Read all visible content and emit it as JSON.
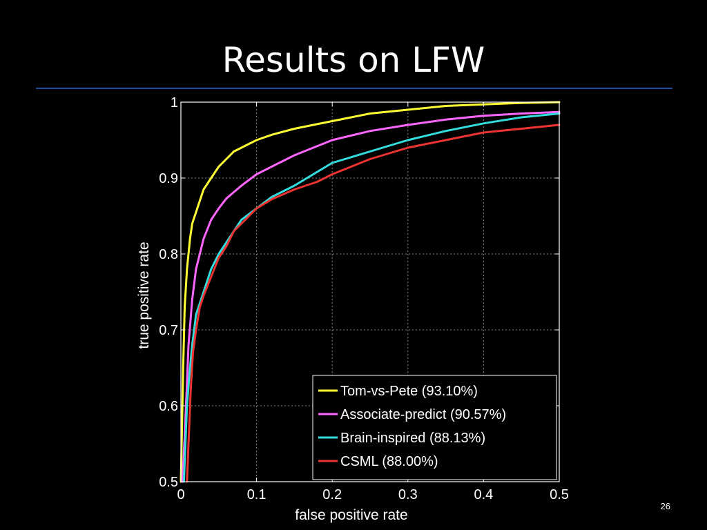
{
  "slide": {
    "title": "Results on LFW",
    "number": "26",
    "accent_rule_color": "#1f4e9c"
  },
  "chart_data": {
    "type": "line",
    "title": "",
    "xlabel": "false positive rate",
    "ylabel": "true positive rate",
    "xlim": [
      0,
      0.5
    ],
    "ylim": [
      0.5,
      1
    ],
    "xticks": [
      0,
      0.1,
      0.2,
      0.3,
      0.4,
      0.5
    ],
    "yticks": [
      0.5,
      0.6,
      0.7,
      0.8,
      0.9,
      1
    ],
    "xtick_labels": [
      "0",
      "0.1",
      "0.2",
      "0.3",
      "0.4",
      "0.5"
    ],
    "ytick_labels": [
      "0.5",
      "0.6",
      "0.7",
      "0.8",
      "0.9",
      "1"
    ],
    "grid": true,
    "legend_position": "bottom-right",
    "series": [
      {
        "name": "Tom-vs-Pete (93.10%)",
        "color": "#ffff33",
        "x": [
          0,
          0.003,
          0.005,
          0.008,
          0.012,
          0.015,
          0.02,
          0.025,
          0.03,
          0.04,
          0.05,
          0.06,
          0.07,
          0.08,
          0.1,
          0.12,
          0.15,
          0.2,
          0.25,
          0.3,
          0.35,
          0.4,
          0.45,
          0.5
        ],
        "y": [
          0.5,
          0.65,
          0.73,
          0.78,
          0.82,
          0.84,
          0.855,
          0.87,
          0.885,
          0.9,
          0.915,
          0.925,
          0.935,
          0.94,
          0.95,
          0.957,
          0.965,
          0.975,
          0.985,
          0.99,
          0.995,
          0.997,
          0.999,
          1.0
        ]
      },
      {
        "name": "Associate-predict (90.57%)",
        "color": "#ff66ff",
        "x": [
          0.002,
          0.005,
          0.008,
          0.01,
          0.015,
          0.02,
          0.025,
          0.03,
          0.04,
          0.05,
          0.06,
          0.08,
          0.1,
          0.12,
          0.15,
          0.2,
          0.25,
          0.3,
          0.35,
          0.4,
          0.45,
          0.5
        ],
        "y": [
          0.5,
          0.56,
          0.63,
          0.68,
          0.74,
          0.78,
          0.8,
          0.82,
          0.845,
          0.86,
          0.873,
          0.89,
          0.905,
          0.915,
          0.93,
          0.95,
          0.962,
          0.97,
          0.977,
          0.982,
          0.985,
          0.987
        ]
      },
      {
        "name": "Brain-inspired (88.13%)",
        "color": "#33dddd",
        "x": [
          0.004,
          0.008,
          0.012,
          0.015,
          0.02,
          0.03,
          0.04,
          0.05,
          0.06,
          0.07,
          0.08,
          0.1,
          0.12,
          0.15,
          0.2,
          0.25,
          0.3,
          0.35,
          0.4,
          0.45,
          0.5
        ],
        "y": [
          0.5,
          0.6,
          0.65,
          0.68,
          0.72,
          0.75,
          0.78,
          0.8,
          0.815,
          0.83,
          0.845,
          0.86,
          0.875,
          0.89,
          0.92,
          0.935,
          0.95,
          0.962,
          0.972,
          0.98,
          0.985
        ]
      },
      {
        "name": "CSML (88.00%)",
        "color": "#ee3333",
        "x": [
          0.008,
          0.01,
          0.013,
          0.016,
          0.02,
          0.025,
          0.03,
          0.04,
          0.05,
          0.06,
          0.07,
          0.08,
          0.1,
          0.12,
          0.15,
          0.18,
          0.2,
          0.25,
          0.3,
          0.35,
          0.4,
          0.45,
          0.5
        ],
        "y": [
          0.5,
          0.55,
          0.62,
          0.67,
          0.7,
          0.73,
          0.745,
          0.77,
          0.795,
          0.81,
          0.83,
          0.84,
          0.86,
          0.872,
          0.885,
          0.895,
          0.905,
          0.925,
          0.94,
          0.95,
          0.96,
          0.965,
          0.97
        ]
      }
    ]
  }
}
